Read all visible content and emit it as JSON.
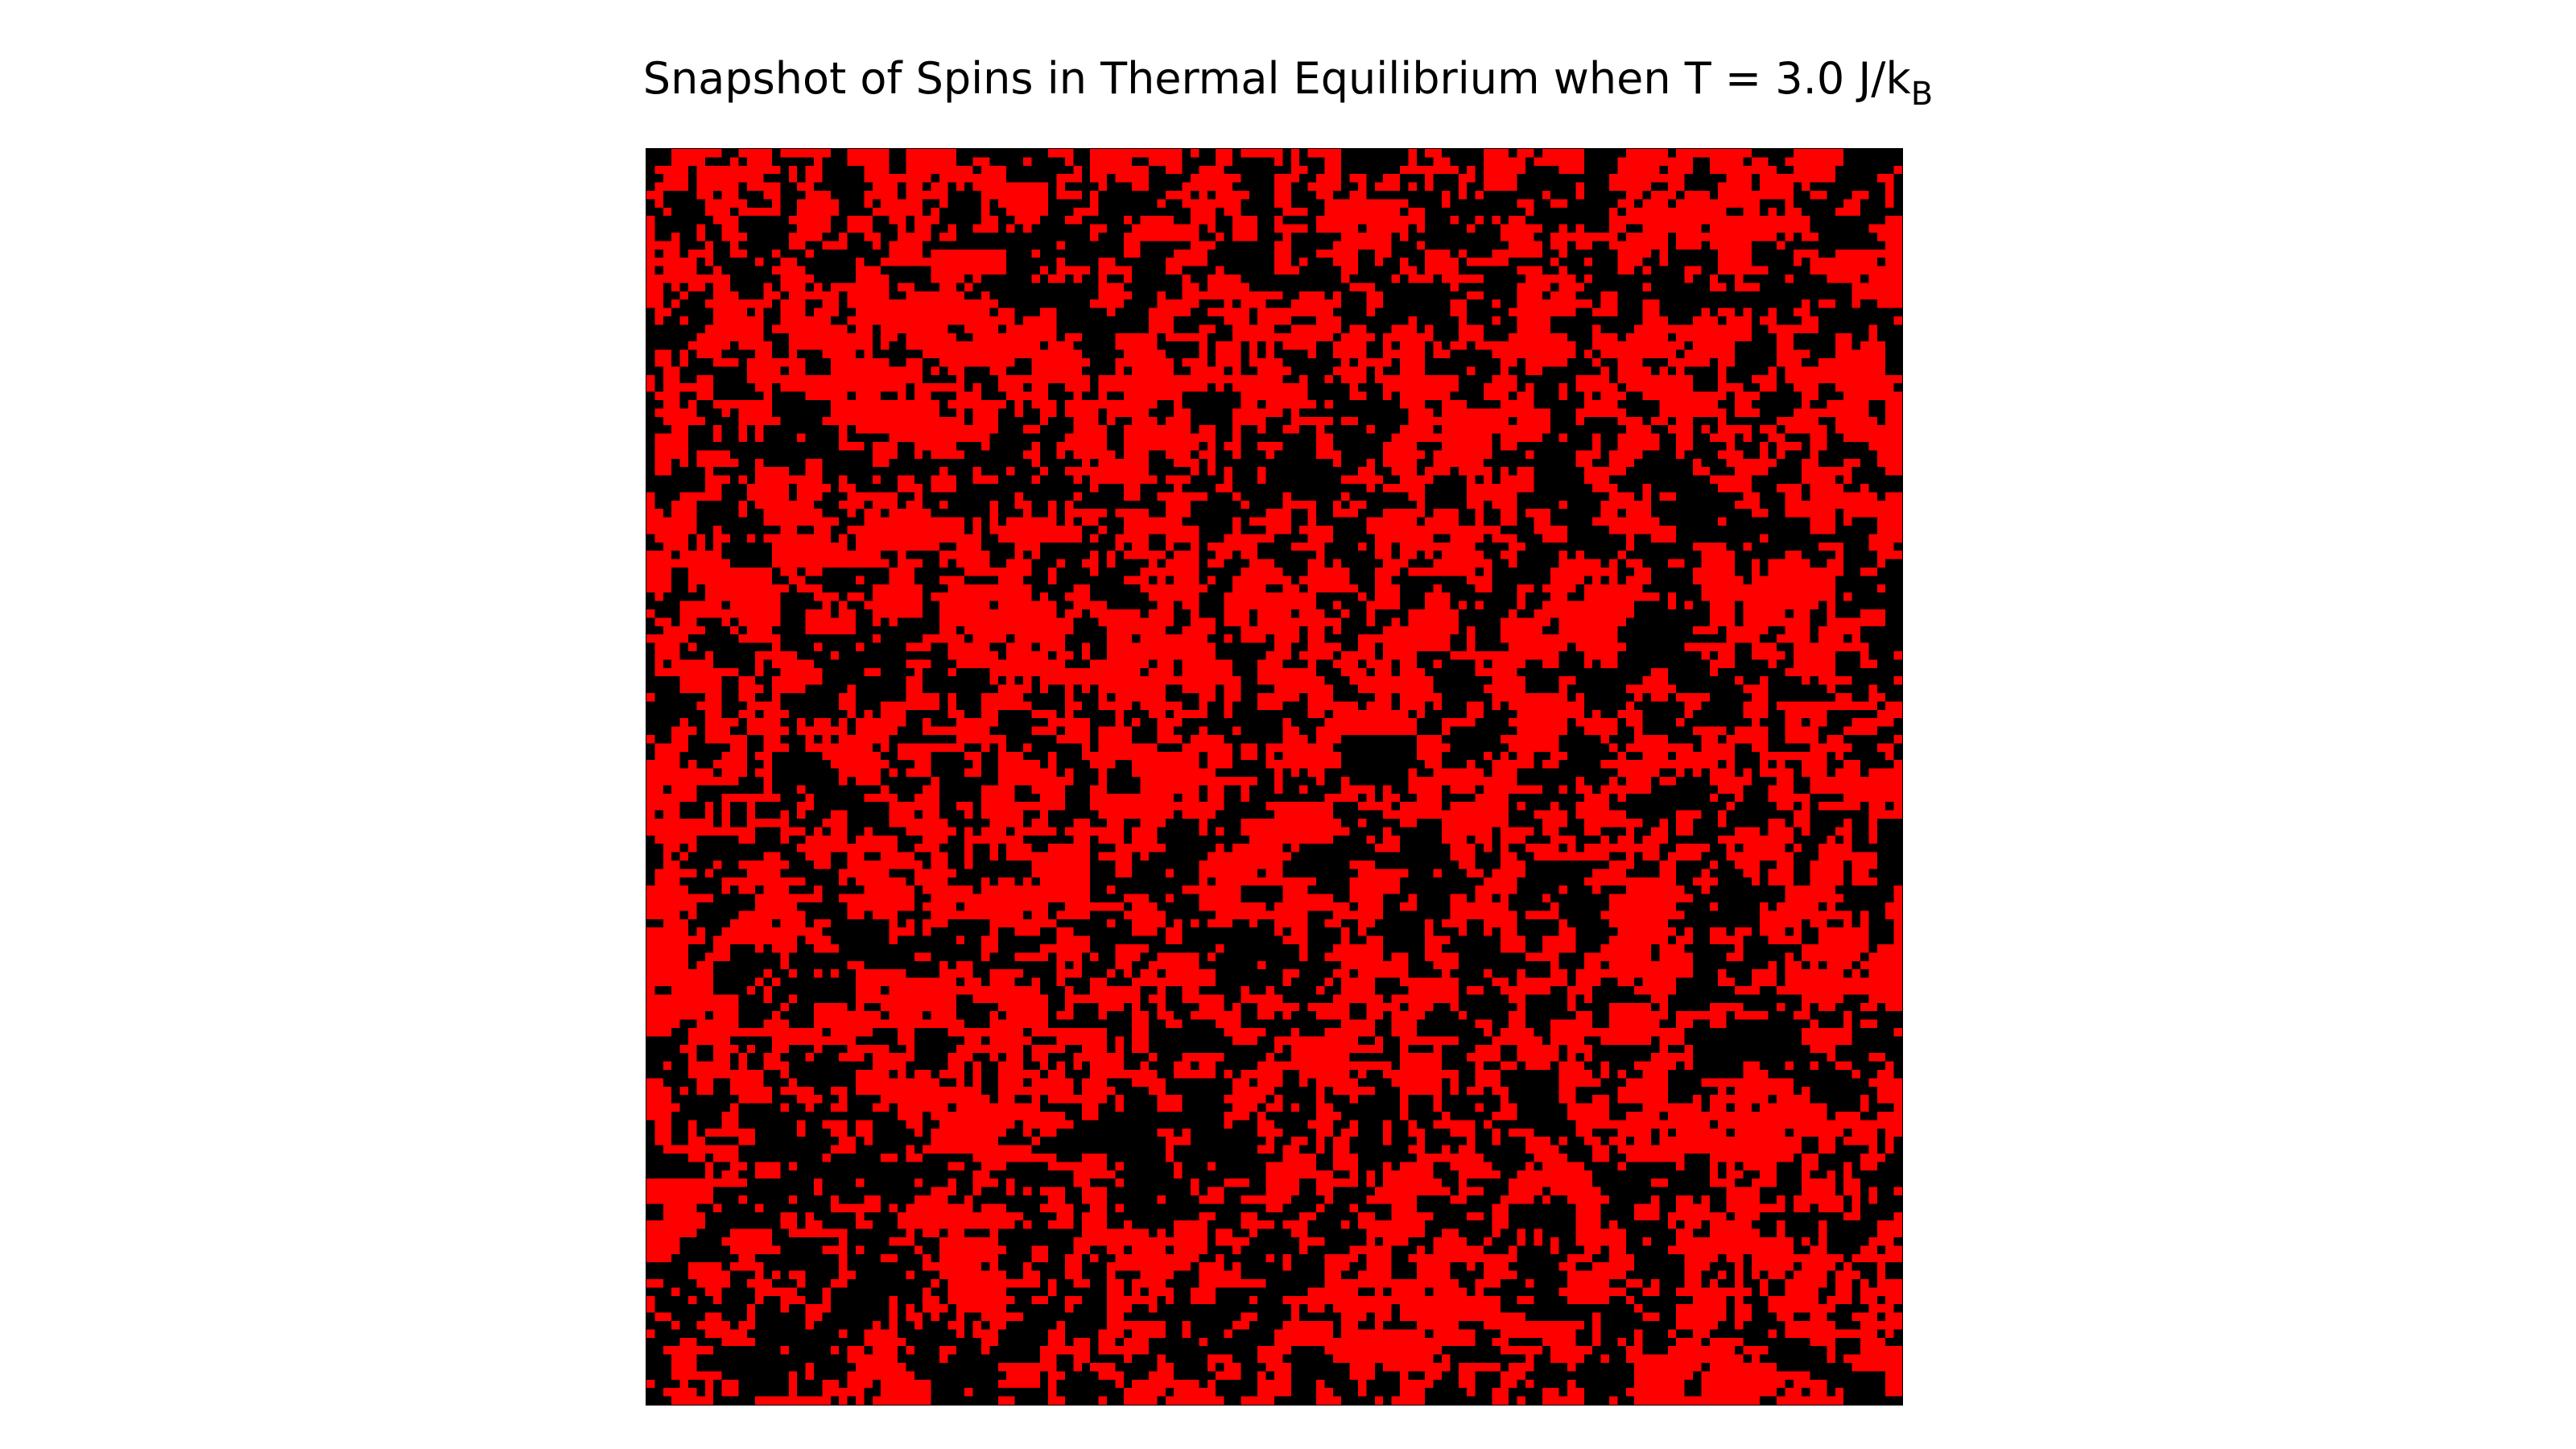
{
  "chart_data": {
    "type": "heatmap",
    "title": {
      "main": "Snapshot of Spins in Thermal Equilibrium when T = 3.0 J/k",
      "subscript": "B"
    },
    "colors": {
      "spin_up": "#ff0000",
      "spin_down": "#000000"
    },
    "lattice": {
      "rows": 150,
      "cols": 150,
      "values": [
        1,
        -1
      ]
    },
    "temperature": 3.0,
    "axes_visible": false,
    "grid": false,
    "legend": "none"
  }
}
